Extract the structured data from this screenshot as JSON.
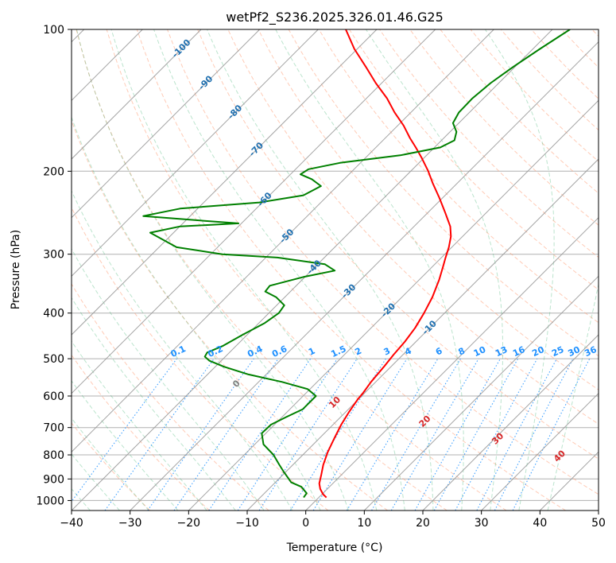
{
  "chart_data": {
    "type": "line",
    "title": "wetPf2_S236.2025.326.01.46.G25",
    "xlabel": "Temperature (°C)",
    "ylabel": "Pressure (hPa)",
    "xlim": [
      -40,
      50
    ],
    "ylim": [
      1050,
      100
    ],
    "y_scale": "log",
    "grid": true,
    "x_ticks": [
      -40,
      -30,
      -20,
      -10,
      0,
      10,
      20,
      30,
      40,
      50
    ],
    "y_ticks": [
      1000,
      900,
      800,
      700,
      600,
      500,
      400,
      300,
      200,
      100
    ],
    "skew_degrees": 45,
    "series": [
      {
        "color": "#ff0000",
        "points": [
          [
            1.3,
            985
          ],
          [
            0.2,
            970
          ],
          [
            -1.2,
            945
          ],
          [
            -2.3,
            920
          ],
          [
            -3.5,
            880
          ],
          [
            -4.8,
            840
          ],
          [
            -6.2,
            790
          ],
          [
            -7.4,
            740
          ],
          [
            -8.6,
            690
          ],
          [
            -9.4,
            650
          ],
          [
            -10.1,
            610
          ],
          [
            -10.3,
            590
          ],
          [
            -10.8,
            560
          ],
          [
            -11.2,
            520
          ],
          [
            -11.6,
            490
          ],
          [
            -11.9,
            460
          ],
          [
            -12.5,
            430
          ],
          [
            -13.5,
            400
          ],
          [
            -14.8,
            370
          ],
          [
            -16.6,
            340
          ],
          [
            -18.1,
            320
          ],
          [
            -19.3,
            305
          ],
          [
            -20.5,
            290
          ],
          [
            -22.0,
            275
          ],
          [
            -23.8,
            262
          ],
          [
            -27.0,
            245
          ],
          [
            -30.5,
            228
          ],
          [
            -34.2,
            212
          ],
          [
            -37.0,
            200
          ],
          [
            -40.5,
            187
          ],
          [
            -43.2,
            178
          ],
          [
            -45.8,
            170
          ],
          [
            -49.0,
            160
          ],
          [
            -52.8,
            150
          ],
          [
            -56.5,
            140
          ],
          [
            -61.0,
            130
          ],
          [
            -65.5,
            120
          ],
          [
            -70.5,
            110
          ],
          [
            -75.3,
            100
          ]
        ]
      },
      {
        "color": "#008000",
        "points": [
          [
            -2.6,
            985
          ],
          [
            -2.8,
            965
          ],
          [
            -4.8,
            935
          ],
          [
            -7.3,
            915
          ],
          [
            -8.6,
            895
          ],
          [
            -10.3,
            870
          ],
          [
            -12.3,
            840
          ],
          [
            -15.0,
            800
          ],
          [
            -18.5,
            760
          ],
          [
            -20.7,
            720
          ],
          [
            -20.6,
            690
          ],
          [
            -19.3,
            665
          ],
          [
            -17.8,
            640
          ],
          [
            -17.8,
            600
          ],
          [
            -20.4,
            580
          ],
          [
            -26.0,
            560
          ],
          [
            -33.0,
            540
          ],
          [
            -38.5,
            520
          ],
          [
            -42.0,
            505
          ],
          [
            -43.5,
            495
          ],
          [
            -43.8,
            485
          ],
          [
            -42.3,
            470
          ],
          [
            -40.8,
            445
          ],
          [
            -39.0,
            420
          ],
          [
            -38.3,
            400
          ],
          [
            -38.7,
            385
          ],
          [
            -41.5,
            370
          ],
          [
            -44.3,
            360
          ],
          [
            -44.5,
            350
          ],
          [
            -40.2,
            335
          ],
          [
            -36.0,
            325
          ],
          [
            -38.8,
            315
          ],
          [
            -48.0,
            305
          ],
          [
            -58.0,
            300
          ],
          [
            -67.0,
            290
          ],
          [
            -74.0,
            270
          ],
          [
            -70.0,
            262
          ],
          [
            -60.5,
            258
          ],
          [
            -68.5,
            254
          ],
          [
            -78.0,
            249
          ],
          [
            -73.0,
            240
          ],
          [
            -60.5,
            233
          ],
          [
            -54.2,
            225
          ],
          [
            -52.8,
            215
          ],
          [
            -55.5,
            208
          ],
          [
            -58.3,
            203
          ],
          [
            -57.8,
            198
          ],
          [
            -53.5,
            192
          ],
          [
            -44.5,
            185
          ],
          [
            -39.0,
            178
          ],
          [
            -37.8,
            172
          ],
          [
            -38.9,
            165
          ],
          [
            -41.0,
            158
          ],
          [
            -41.8,
            150
          ],
          [
            -41.9,
            140
          ],
          [
            -41.4,
            130
          ],
          [
            -40.3,
            120
          ],
          [
            -38.8,
            110
          ],
          [
            -37.0,
            100
          ]
        ]
      }
    ],
    "isotherm_labels": [
      "-100",
      "-90",
      "-80",
      "-70",
      "-60",
      "-50",
      "-40",
      "-30",
      "-20",
      "-10"
    ],
    "mixing_ratio_labels": [
      "0.1",
      "0.2",
      "0.4",
      "0.6",
      "1",
      "1.5",
      "2",
      "3",
      "4",
      "6",
      "8",
      "10",
      "13",
      "16",
      "20",
      "25",
      "30",
      "36"
    ],
    "moist_adiabat_labels": [
      "0",
      "10",
      "20",
      "30",
      "40"
    ]
  }
}
